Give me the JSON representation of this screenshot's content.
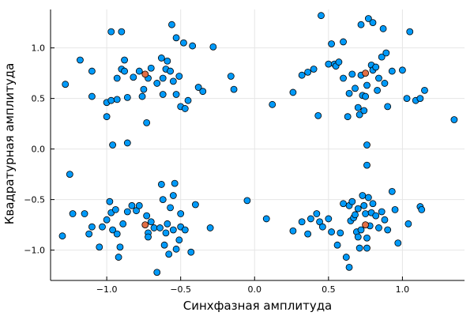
{
  "chart_data": {
    "type": "scatter",
    "xlabel": "Синхфазная амплитуда",
    "ylabel": "Квадратурная амплитуда",
    "xlim": [
      -1.38,
      1.42
    ],
    "ylim": [
      -1.3,
      1.38
    ],
    "grid": true,
    "legend": "none",
    "xticks": [
      -1.0,
      -0.5,
      0.0,
      0.5,
      1.0
    ],
    "xtick_labels": [
      "−1.0",
      "−0.5",
      "0.0",
      "0.5",
      "1.0"
    ],
    "yticks": [
      -1.0,
      -0.5,
      0.0,
      0.5,
      1.0
    ],
    "ytick_labels": [
      "−1.0",
      "−0.5",
      "0.0",
      "0.5",
      "1.0"
    ],
    "colors": {
      "received": "#009af9",
      "reference": "#e26f46",
      "marker_edge": "#000000"
    },
    "series": [
      {
        "color": "#009af9",
        "points": [
          [
            -1.28,
            0.64
          ],
          [
            -1.18,
            0.88
          ],
          [
            -1.1,
            0.77
          ],
          [
            -1.1,
            0.52
          ],
          [
            -1.0,
            0.46
          ],
          [
            -1.0,
            0.32
          ],
          [
            -0.97,
            1.16
          ],
          [
            -0.97,
            0.48
          ],
          [
            -0.93,
            0.49
          ],
          [
            -0.93,
            0.7
          ],
          [
            -0.9,
            0.79
          ],
          [
            -0.9,
            1.16
          ],
          [
            -0.88,
            0.77
          ],
          [
            -0.88,
            0.88
          ],
          [
            -0.86,
            0.51
          ],
          [
            -0.82,
            0.71
          ],
          [
            -0.78,
            0.77
          ],
          [
            -0.76,
            0.52
          ],
          [
            -0.75,
            0.59
          ],
          [
            -0.73,
            0.26
          ],
          [
            -0.72,
            0.7
          ],
          [
            -0.7,
            0.8
          ],
          [
            -0.66,
            0.65
          ],
          [
            -0.63,
            0.9
          ],
          [
            -0.62,
            0.54
          ],
          [
            -0.6,
            0.79
          ],
          [
            -0.59,
            0.87
          ],
          [
            -0.57,
            0.77
          ],
          [
            -0.55,
            0.67
          ],
          [
            -0.53,
            1.1
          ],
          [
            -0.51,
            0.72
          ],
          [
            -0.5,
            0.42
          ],
          [
            -0.48,
            1.05
          ],
          [
            -0.47,
            0.4
          ],
          [
            -0.45,
            0.48
          ],
          [
            -0.42,
            1.02
          ],
          [
            -0.38,
            0.61
          ],
          [
            -0.35,
            0.57
          ],
          [
            -0.28,
            1.01
          ],
          [
            -0.16,
            0.72
          ],
          [
            -0.14,
            0.59
          ],
          [
            -0.56,
            1.23
          ],
          [
            -0.62,
            0.7
          ],
          [
            -0.53,
            0.54
          ],
          [
            -0.96,
            0.04
          ],
          [
            -0.86,
            0.06
          ],
          [
            0.12,
            0.44
          ],
          [
            0.26,
            0.56
          ],
          [
            0.32,
            0.73
          ],
          [
            0.36,
            0.76
          ],
          [
            0.4,
            0.79
          ],
          [
            0.43,
            0.33
          ],
          [
            0.45,
            1.32
          ],
          [
            0.5,
            0.84
          ],
          [
            0.52,
            1.04
          ],
          [
            0.54,
            0.84
          ],
          [
            0.55,
            0.82
          ],
          [
            0.57,
            0.86
          ],
          [
            0.6,
            1.06
          ],
          [
            0.6,
            0.7
          ],
          [
            0.63,
            0.32
          ],
          [
            0.64,
            0.55
          ],
          [
            0.66,
            0.74
          ],
          [
            0.68,
            0.6
          ],
          [
            0.7,
            0.41
          ],
          [
            0.71,
            0.34
          ],
          [
            0.72,
            0.73
          ],
          [
            0.72,
            1.23
          ],
          [
            0.73,
            0.53
          ],
          [
            0.74,
            0.38
          ],
          [
            0.75,
            0.52
          ],
          [
            0.76,
            0.63
          ],
          [
            0.77,
            1.29
          ],
          [
            0.79,
            0.83
          ],
          [
            0.8,
            1.25
          ],
          [
            0.8,
            0.78
          ],
          [
            0.82,
            0.81
          ],
          [
            0.83,
            0.58
          ],
          [
            0.84,
            0.7
          ],
          [
            0.86,
            0.91
          ],
          [
            0.87,
            1.19
          ],
          [
            0.88,
            0.65
          ],
          [
            0.89,
            0.95
          ],
          [
            0.9,
            0.42
          ],
          [
            0.93,
            0.77
          ],
          [
            1.0,
            0.78
          ],
          [
            1.03,
            0.5
          ],
          [
            1.05,
            1.16
          ],
          [
            1.09,
            0.48
          ],
          [
            1.12,
            0.5
          ],
          [
            1.15,
            0.58
          ],
          [
            1.35,
            0.29
          ],
          [
            0.76,
            0.04
          ],
          [
            0.76,
            -0.16
          ],
          [
            -1.25,
            -0.25
          ],
          [
            -1.3,
            -0.86
          ],
          [
            -1.23,
            -0.64
          ],
          [
            -1.15,
            -0.64
          ],
          [
            -1.12,
            -0.84
          ],
          [
            -1.1,
            -0.77
          ],
          [
            -1.05,
            -0.97
          ],
          [
            -1.03,
            -0.77
          ],
          [
            -1.0,
            -0.7
          ],
          [
            -0.98,
            -0.52
          ],
          [
            -0.97,
            -0.63
          ],
          [
            -0.96,
            -0.8
          ],
          [
            -0.94,
            -0.6
          ],
          [
            -0.93,
            -0.84
          ],
          [
            -0.92,
            -1.07
          ],
          [
            -0.91,
            -0.97
          ],
          [
            -0.89,
            -0.74
          ],
          [
            -0.86,
            -0.62
          ],
          [
            -0.83,
            -0.56
          ],
          [
            -0.8,
            -0.61
          ],
          [
            -0.78,
            -0.56
          ],
          [
            -0.73,
            -0.66
          ],
          [
            -0.72,
            -0.83
          ],
          [
            -0.72,
            -0.87
          ],
          [
            -0.7,
            -0.72
          ],
          [
            -0.68,
            -0.78
          ],
          [
            -0.66,
            -1.22
          ],
          [
            -0.64,
            -0.78
          ],
          [
            -0.63,
            -0.35
          ],
          [
            -0.62,
            -0.5
          ],
          [
            -0.61,
            -0.95
          ],
          [
            -0.6,
            -0.83
          ],
          [
            -0.59,
            -0.74
          ],
          [
            -0.58,
            -1.04
          ],
          [
            -0.57,
            -0.58
          ],
          [
            -0.55,
            -0.8
          ],
          [
            -0.55,
            -0.46
          ],
          [
            -0.54,
            -0.34
          ],
          [
            -0.53,
            -0.99
          ],
          [
            -0.51,
            -0.9
          ],
          [
            -0.5,
            -0.77
          ],
          [
            -0.5,
            -0.64
          ],
          [
            -0.47,
            -0.8
          ],
          [
            -0.43,
            -1.02
          ],
          [
            -0.4,
            -0.55
          ],
          [
            -0.3,
            -0.78
          ],
          [
            -0.05,
            -0.51
          ],
          [
            0.08,
            -0.69
          ],
          [
            0.26,
            -0.81
          ],
          [
            0.32,
            -0.72
          ],
          [
            0.38,
            -0.69
          ],
          [
            0.42,
            -0.64
          ],
          [
            0.44,
            -0.72
          ],
          [
            0.46,
            -0.77
          ],
          [
            0.5,
            -0.69
          ],
          [
            0.52,
            -0.82
          ],
          [
            0.56,
            -0.95
          ],
          [
            0.58,
            -0.83
          ],
          [
            0.6,
            -0.54
          ],
          [
            0.62,
            -1.07
          ],
          [
            0.64,
            -0.56
          ],
          [
            0.65,
            -0.71
          ],
          [
            0.66,
            -0.52
          ],
          [
            0.67,
            -0.68
          ],
          [
            0.68,
            -0.65
          ],
          [
            0.69,
            -0.82
          ],
          [
            0.7,
            -0.87
          ],
          [
            0.7,
            -0.59
          ],
          [
            0.71,
            -0.98
          ],
          [
            0.72,
            -0.8
          ],
          [
            0.73,
            -0.46
          ],
          [
            0.74,
            -0.56
          ],
          [
            0.75,
            -0.64
          ],
          [
            0.76,
            -0.88
          ],
          [
            0.77,
            -0.48
          ],
          [
            0.78,
            -0.76
          ],
          [
            0.79,
            -0.63
          ],
          [
            0.8,
            -0.54
          ],
          [
            0.82,
            -0.66
          ],
          [
            0.84,
            -0.78
          ],
          [
            0.86,
            -0.62
          ],
          [
            0.88,
            -0.7
          ],
          [
            0.9,
            -0.8
          ],
          [
            0.93,
            -0.42
          ],
          [
            0.95,
            -0.6
          ],
          [
            0.97,
            -0.93
          ],
          [
            1.04,
            -0.74
          ],
          [
            1.12,
            -0.57
          ],
          [
            1.13,
            -0.6
          ],
          [
            0.64,
            -1.17
          ],
          [
            0.36,
            -0.84
          ],
          [
            0.76,
            -0.98
          ]
        ]
      },
      {
        "color": "#e26f46",
        "points": [
          [
            -0.74,
            0.74
          ],
          [
            0.75,
            0.75
          ],
          [
            -0.74,
            -0.75
          ],
          [
            0.75,
            -0.75
          ]
        ]
      }
    ]
  }
}
